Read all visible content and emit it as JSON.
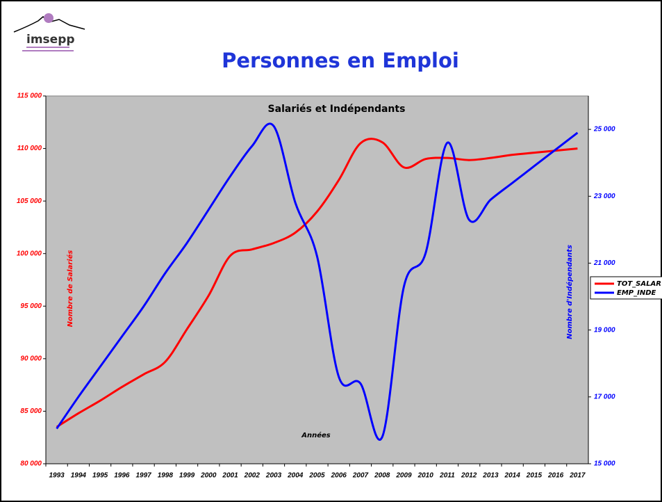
{
  "logo": "imsepp",
  "chart_data": {
    "type": "line",
    "page_title": "Personnes en Emploi",
    "title": "Salariés et Indépendants",
    "x_label": "Années",
    "y_label": "Nombre de Salariés",
    "y2_label": "Nombre d'Indépendants",
    "categories": [
      "1993",
      "1994",
      "1995",
      "1996",
      "1997",
      "1998",
      "1999",
      "2000",
      "2001",
      "2002",
      "2003",
      "2004",
      "2005",
      "2006",
      "2007",
      "2008",
      "2009",
      "2010",
      "2011",
      "2012",
      "2013",
      "2014",
      "2015",
      "2016",
      "2017"
    ],
    "series": [
      {
        "name": "TOT_SALAR",
        "color": "#ff0000",
        "axis": "y",
        "values": [
          83500,
          84800,
          86000,
          87300,
          88500,
          89700,
          92800,
          96000,
          99800,
          100400,
          101000,
          102000,
          104000,
          107000,
          110500,
          110600,
          108200,
          109000,
          109100,
          108900,
          109100,
          109400,
          109600,
          109800,
          110000
        ]
      },
      {
        "name": "EMP_INDE",
        "color": "#0000ff",
        "axis": "y2",
        "values": [
          16050,
          17000,
          17900,
          18800,
          19700,
          20700,
          21600,
          22600,
          23600,
          24500,
          25100,
          22800,
          21200,
          17600,
          17400,
          15800,
          20300,
          21300,
          24600,
          22300,
          22900,
          23400,
          23900,
          24400,
          24900
        ]
      }
    ],
    "ylim": [
      80000,
      115000
    ],
    "yticks": [
      {
        "value": 80000,
        "label": "80 000"
      },
      {
        "value": 85000,
        "label": "85 000"
      },
      {
        "value": 90000,
        "label": "90 000"
      },
      {
        "value": 95000,
        "label": "95 000"
      },
      {
        "value": 100000,
        "label": "100 000"
      },
      {
        "value": 105000,
        "label": "105 000"
      },
      {
        "value": 110000,
        "label": "110 000"
      },
      {
        "value": 115000,
        "label": "115 000"
      }
    ],
    "y2lim": [
      15000,
      26000
    ],
    "y2ticks": [
      {
        "value": 15000,
        "label": "15 000"
      },
      {
        "value": 17000,
        "label": "17 000"
      },
      {
        "value": 19000,
        "label": "19 000"
      },
      {
        "value": 21000,
        "label": "21 000"
      },
      {
        "value": 23000,
        "label": "23 000"
      },
      {
        "value": 25000,
        "label": "25 000"
      }
    ],
    "plot_background": "#c0c0c0"
  }
}
